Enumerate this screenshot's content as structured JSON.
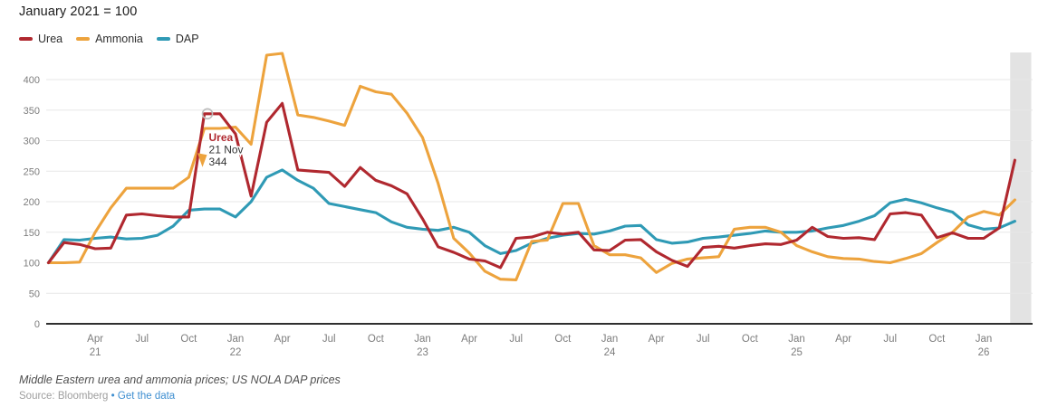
{
  "title": "January 2021 = 100",
  "legend": [
    {
      "label": "Urea",
      "color": "#b0282f"
    },
    {
      "label": "Ammonia",
      "color": "#eda33d"
    },
    {
      "label": "DAP",
      "color": "#2f9ab5"
    }
  ],
  "chart_data": {
    "type": "line",
    "title": "January 2021 = 100",
    "ylim": [
      0,
      443
    ],
    "y_ticks": [
      0,
      50,
      100,
      150,
      200,
      250,
      300,
      350,
      400
    ],
    "grid": "horizontal",
    "legend_position": "top-left",
    "months": [
      "Jan 21",
      "Feb 21",
      "Mar 21",
      "Apr 21",
      "May 21",
      "Jun 21",
      "Jul 21",
      "Aug 21",
      "Sep 21",
      "Oct 21",
      "Nov 21",
      "Dec 21",
      "Jan 22",
      "Feb 22",
      "Mar 22",
      "Apr 22",
      "May 22",
      "Jun 22",
      "Jul 22",
      "Aug 22",
      "Sep 22",
      "Oct 22",
      "Nov 22",
      "Dec 22",
      "Jan 23",
      "Feb 23",
      "Mar 23",
      "Apr 23",
      "May 23",
      "Jun 23",
      "Jul 23",
      "Aug 23",
      "Sep 23",
      "Oct 23",
      "Nov 23",
      "Dec 23",
      "Jan 24",
      "Feb 24",
      "Mar 24",
      "Apr 24",
      "May 24",
      "Jun 24",
      "Jul 24",
      "Aug 24",
      "Sep 24",
      "Oct 24",
      "Nov 24",
      "Dec 24",
      "Jan 25",
      "Feb 25",
      "Mar 25",
      "Apr 25",
      "May 25",
      "Jun 25",
      "Jul 25",
      "Aug 25",
      "Sep 25",
      "Oct 25",
      "Nov 25",
      "Dec 25",
      "Jan 26",
      "Feb 26",
      "Mar 26"
    ],
    "series": [
      {
        "name": "Urea",
        "color": "#b0282f",
        "values": [
          100,
          133,
          130,
          123,
          124,
          178,
          180,
          177,
          175,
          175,
          344,
          344,
          311,
          209,
          330,
          361,
          252,
          250,
          248,
          225,
          256,
          235,
          226,
          213,
          172,
          126,
          117,
          106,
          103,
          92,
          140,
          142,
          150,
          147,
          150,
          121,
          120,
          137,
          138,
          118,
          104,
          94,
          125,
          127,
          124,
          128,
          131,
          130,
          137,
          158,
          143,
          140,
          141,
          138,
          180,
          182,
          178,
          141,
          149,
          140,
          140,
          157,
          268
        ]
      },
      {
        "name": "Ammonia",
        "color": "#eda33d",
        "values": [
          100,
          100,
          101,
          150,
          190,
          222,
          222,
          222,
          222,
          240,
          320,
          320,
          322,
          294,
          440,
          443,
          342,
          338,
          332,
          325,
          389,
          380,
          376,
          345,
          305,
          230,
          140,
          116,
          86,
          73,
          72,
          135,
          137,
          197,
          197,
          128,
          113,
          113,
          108,
          84,
          99,
          106,
          108,
          110,
          155,
          158,
          158,
          150,
          128,
          118,
          110,
          107,
          106,
          102,
          100,
          107,
          115,
          133,
          150,
          175,
          184,
          178,
          203
        ]
      },
      {
        "name": "DAP",
        "color": "#2f9ab5",
        "values": [
          100,
          138,
          137,
          140,
          142,
          139,
          140,
          145,
          160,
          186,
          188,
          188,
          175,
          200,
          240,
          252,
          235,
          222,
          197,
          192,
          187,
          182,
          167,
          158,
          155,
          153,
          158,
          150,
          128,
          115,
          120,
          132,
          140,
          145,
          148,
          147,
          152,
          160,
          161,
          138,
          132,
          134,
          140,
          142,
          145,
          148,
          152,
          150,
          150,
          152,
          157,
          161,
          168,
          177,
          198,
          204,
          198,
          190,
          183,
          162,
          155,
          157,
          168
        ]
      }
    ],
    "x_ticks": [
      {
        "month_index": 3,
        "label": "Apr",
        "year": "21"
      },
      {
        "month_index": 6,
        "label": "Jul"
      },
      {
        "month_index": 9,
        "label": "Oct"
      },
      {
        "month_index": 12,
        "label": "Jan",
        "year": "22"
      },
      {
        "month_index": 15,
        "label": "Apr"
      },
      {
        "month_index": 18,
        "label": "Jul"
      },
      {
        "month_index": 21,
        "label": "Oct"
      },
      {
        "month_index": 24,
        "label": "Jan",
        "year": "23"
      },
      {
        "month_index": 27,
        "label": "Apr"
      },
      {
        "month_index": 30,
        "label": "Jul"
      },
      {
        "month_index": 33,
        "label": "Oct"
      },
      {
        "month_index": 36,
        "label": "Jan",
        "year": "24"
      },
      {
        "month_index": 39,
        "label": "Apr"
      },
      {
        "month_index": 42,
        "label": "Jul"
      },
      {
        "month_index": 45,
        "label": "Oct"
      },
      {
        "month_index": 48,
        "label": "Jan",
        "year": "25"
      },
      {
        "month_index": 51,
        "label": "Apr"
      },
      {
        "month_index": 54,
        "label": "Jul"
      },
      {
        "month_index": 57,
        "label": "Oct"
      },
      {
        "month_index": 60,
        "label": "Jan",
        "year": "26"
      }
    ],
    "annotation": {
      "series": "Urea",
      "title": "Urea",
      "date_label": "21 Nov",
      "value_label": "344",
      "value": 344,
      "month_index": 10.2
    },
    "highlight_band": {
      "from_month_index": 61.7,
      "to_month_index": 63.05
    }
  },
  "footer": {
    "notes": "Middle Eastern urea and ammonia prices; US NOLA DAP prices",
    "source_label": "Source:",
    "source": "Bloomberg",
    "separator": "•",
    "link_label": "Get the data",
    "link_color": "#3d8ed0"
  }
}
